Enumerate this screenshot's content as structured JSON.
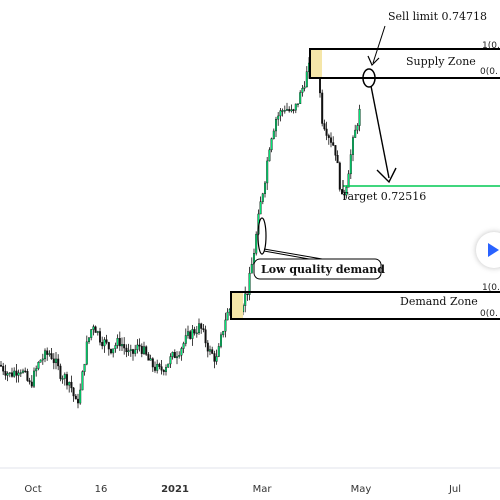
{
  "chart_data": {
    "type": "candlestick",
    "x_ticks": [
      "Oct",
      "16",
      "2021",
      "Mar",
      "May",
      "Jul"
    ],
    "y_range": [
      0.655,
      0.76
    ],
    "supply_zone": {
      "label": "Supply Zone",
      "top": 0.7493,
      "bottom": 0.7471,
      "fib_top_label": "1(0.",
      "fib_bottom_label": "0(0."
    },
    "demand_zone": {
      "label": "Demand Zone",
      "top": 0.715,
      "bottom": 0.713,
      "fib_top_label": "1(0.",
      "fib_bottom_label": "0(0."
    },
    "target": {
      "label": "Target 0.72516",
      "value": 0.72516,
      "color": "#00c853"
    },
    "sell_limit": {
      "label": "Sell limit 0.74718",
      "value": 0.74718
    },
    "callout": {
      "label": "Low quality demand"
    },
    "colors": {
      "candle_up": "#00e676",
      "candle_down": "#111111",
      "zone_highlight": "#f5e6a8"
    }
  }
}
